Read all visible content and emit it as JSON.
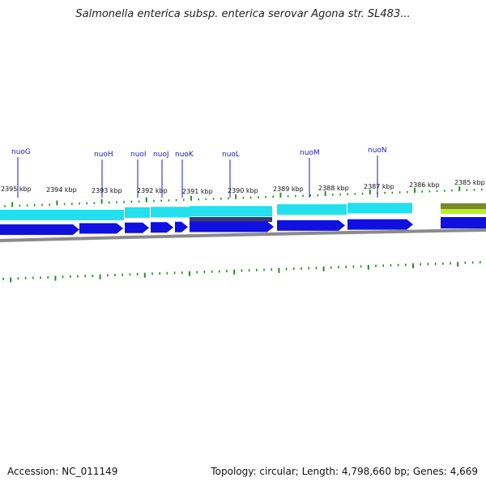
{
  "title": "Salmonella enterica subsp. enterica serovar Agona str. SL483...",
  "footer": {
    "accession": "Accession: NC_011149",
    "summary": "Topology: circular; Length: 4,798,660 bp; Genes: 4,669"
  },
  "scale_labels": [
    "2395 kbp",
    "2394 kbp",
    "2393 kbp",
    "2392 kbp",
    "2391 kbp",
    "2390 kbp",
    "2389 kbp",
    "2388 kbp",
    "2387 kbp",
    "2386 kbp",
    "2385 kbp"
  ],
  "genes": [
    "nuoG",
    "nuoH",
    "nuoI",
    "nuoJ",
    "nuoK",
    "nuoL",
    "nuoM",
    "nuoN"
  ],
  "colors": {
    "gene_arrow": "#1010e0",
    "gene_band": "#22e0ee",
    "tick_green": "#2a8a2a",
    "backbone": "#8a8a8a",
    "gene_label": "#1a1ac8",
    "dark_bar": "#3a3a78",
    "olive_band": "#7a8a2a",
    "lime_band": "#b8f020"
  }
}
